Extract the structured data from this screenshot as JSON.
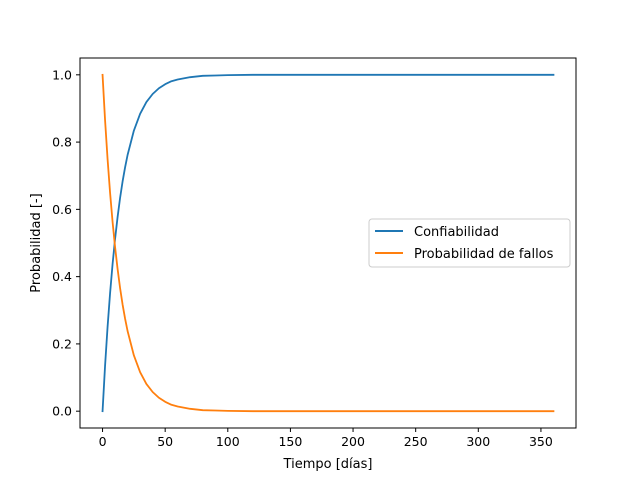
{
  "chart_data": {
    "type": "line",
    "title": "",
    "xlabel": "Tiempo [días]",
    "ylabel": "Probabilidad [-]",
    "xlim": [
      -18,
      378
    ],
    "ylim": [
      -0.05,
      1.05
    ],
    "xticks": [
      0,
      50,
      100,
      150,
      200,
      250,
      300,
      350
    ],
    "yticks": [
      0.0,
      0.2,
      0.4,
      0.6,
      0.8,
      1.0
    ],
    "ytick_labels": [
      "0.0",
      "0.2",
      "0.4",
      "0.6",
      "0.8",
      "1.0"
    ],
    "grid": false,
    "legend_position": "center-right",
    "x": [
      0,
      2,
      4,
      6,
      8,
      10,
      12,
      14,
      16,
      18,
      20,
      25,
      30,
      35,
      40,
      45,
      50,
      55,
      60,
      70,
      80,
      90,
      100,
      120,
      140,
      160,
      200,
      250,
      300,
      360
    ],
    "series": [
      {
        "name": "Confiabilidad",
        "color": "#1f77b4",
        "values": [
          0.0,
          0.134,
          0.25,
          0.35,
          0.437,
          0.512,
          0.577,
          0.634,
          0.683,
          0.725,
          0.762,
          0.834,
          0.884,
          0.919,
          0.943,
          0.96,
          0.972,
          0.981,
          0.986,
          0.993,
          0.997,
          0.998,
          0.999,
          1.0,
          1.0,
          1.0,
          1.0,
          1.0,
          1.0,
          1.0
        ]
      },
      {
        "name": "Probabilidad de fallos",
        "color": "#ff7f0e",
        "values": [
          1.0,
          0.866,
          0.75,
          0.65,
          0.563,
          0.488,
          0.423,
          0.366,
          0.317,
          0.275,
          0.238,
          0.166,
          0.116,
          0.081,
          0.057,
          0.04,
          0.028,
          0.019,
          0.014,
          0.007,
          0.003,
          0.002,
          0.001,
          0.0,
          0.0,
          0.0,
          0.0,
          0.0,
          0.0,
          0.0
        ]
      }
    ]
  }
}
